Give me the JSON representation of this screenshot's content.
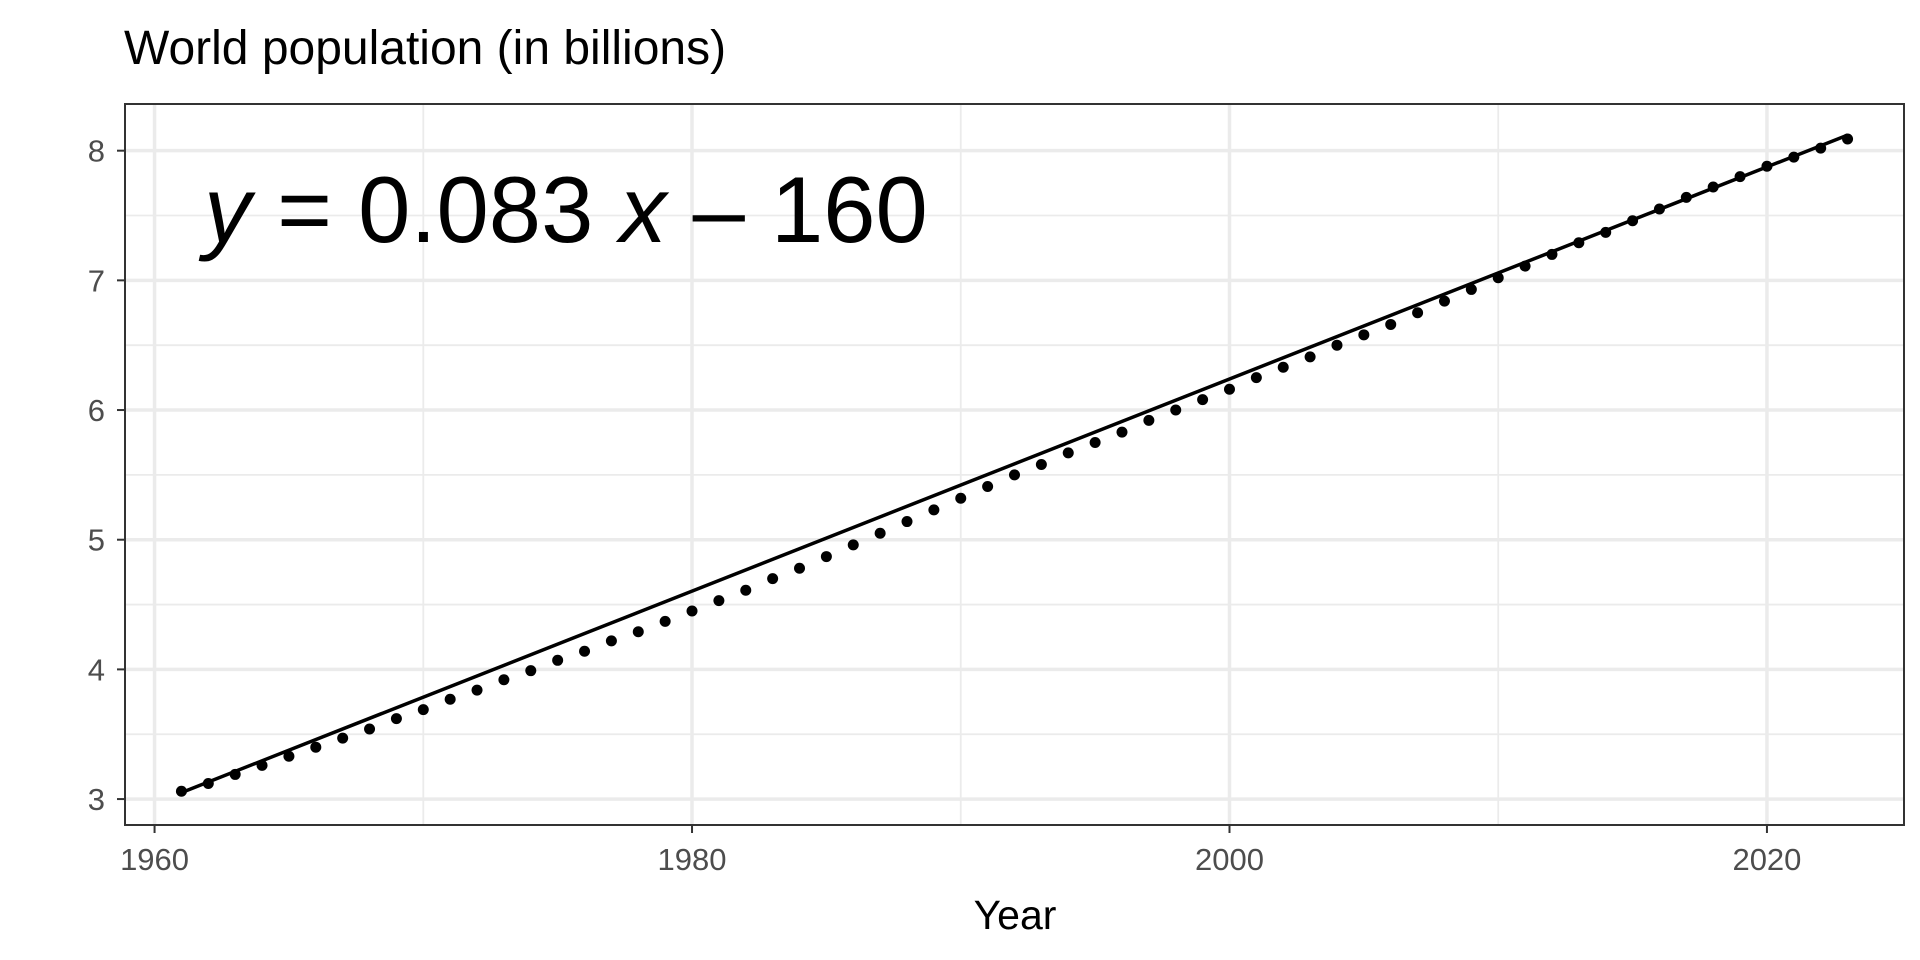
{
  "chart_data": {
    "type": "scatter",
    "title": "World population (in billions)",
    "xlabel": "Year",
    "ylabel": "",
    "xlim": [
      1958.9,
      2025.1
    ],
    "ylim": [
      2.8,
      8.36
    ],
    "x_ticks": [
      1960,
      1980,
      2000,
      2020
    ],
    "y_ticks": [
      3,
      4,
      5,
      6,
      7,
      8
    ],
    "grid": true,
    "annotation": {
      "y_var": "y",
      "eq_part1": " = 0.083 ",
      "x_var": "x",
      "eq_part2": " – 160"
    },
    "series": [
      {
        "x": [
          1961,
          1962,
          1963,
          1964,
          1965,
          1966,
          1967,
          1968,
          1969,
          1970,
          1971,
          1972,
          1973,
          1974,
          1975,
          1976,
          1977,
          1978,
          1979,
          1980,
          1981,
          1982,
          1983,
          1984,
          1985,
          1986,
          1987,
          1988,
          1989,
          1990,
          1991,
          1992,
          1993,
          1994,
          1995,
          1996,
          1997,
          1998,
          1999,
          2000,
          2001,
          2002,
          2003,
          2004,
          2005,
          2006,
          2007,
          2008,
          2009,
          2010,
          2011,
          2012,
          2013,
          2014,
          2015,
          2016,
          2017,
          2018,
          2019,
          2020,
          2021,
          2022,
          2023
        ],
        "y": [
          3.06,
          3.12,
          3.19,
          3.26,
          3.33,
          3.4,
          3.47,
          3.54,
          3.62,
          3.69,
          3.77,
          3.84,
          3.92,
          3.99,
          4.07,
          4.14,
          4.22,
          4.29,
          4.37,
          4.45,
          4.53,
          4.61,
          4.7,
          4.78,
          4.87,
          4.96,
          5.05,
          5.14,
          5.23,
          5.32,
          5.41,
          5.5,
          5.58,
          5.67,
          5.75,
          5.83,
          5.92,
          6.0,
          6.08,
          6.16,
          6.25,
          6.33,
          6.41,
          6.5,
          6.58,
          6.66,
          6.75,
          6.84,
          6.93,
          7.02,
          7.11,
          7.2,
          7.29,
          7.37,
          7.46,
          7.55,
          7.64,
          7.72,
          7.8,
          7.88,
          7.95,
          8.02,
          8.09
        ]
      }
    ],
    "fit_line": {
      "x": [
        1961,
        2023
      ],
      "y": [
        3.05,
        8.12
      ]
    }
  }
}
